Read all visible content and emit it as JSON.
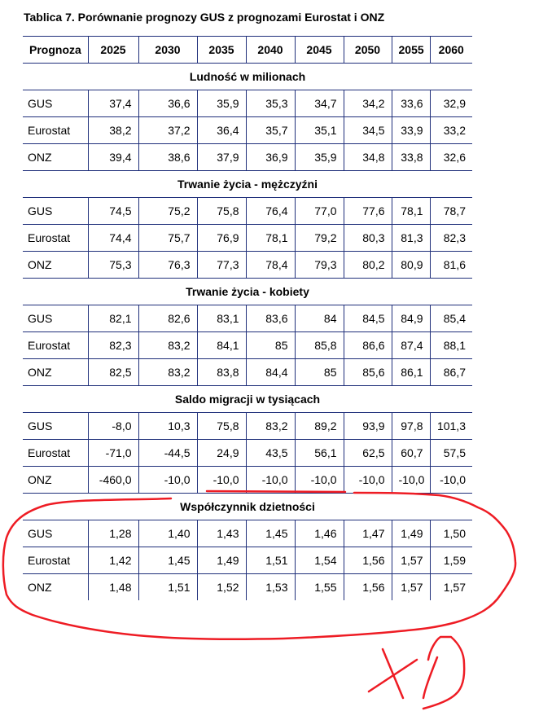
{
  "title": "Tablica 7. Porównanie prognozy GUS z prognozami Eurostat i ONZ",
  "table": {
    "header": [
      "Prognoza",
      "2025",
      "2030",
      "2035",
      "2040",
      "2045",
      "2050",
      "2055",
      "2060"
    ],
    "sections": [
      {
        "title": "Ludność w milionach",
        "rows": [
          [
            "GUS",
            "37,4",
            "36,6",
            "35,9",
            "35,3",
            "34,7",
            "34,2",
            "33,6",
            "32,9"
          ],
          [
            "Eurostat",
            "38,2",
            "37,2",
            "36,4",
            "35,7",
            "35,1",
            "34,5",
            "33,9",
            "33,2"
          ],
          [
            "ONZ",
            "39,4",
            "38,6",
            "37,9",
            "36,9",
            "35,9",
            "34,8",
            "33,8",
            "32,6"
          ]
        ]
      },
      {
        "title": "Trwanie życia - mężczyźni",
        "rows": [
          [
            "GUS",
            "74,5",
            "75,2",
            "75,8",
            "76,4",
            "77,0",
            "77,6",
            "78,1",
            "78,7"
          ],
          [
            "Eurostat",
            "74,4",
            "75,7",
            "76,9",
            "78,1",
            "79,2",
            "80,3",
            "81,3",
            "82,3"
          ],
          [
            "ONZ",
            "75,3",
            "76,3",
            "77,3",
            "78,4",
            "79,3",
            "80,2",
            "80,9",
            "81,6"
          ]
        ]
      },
      {
        "title": "Trwanie życia - kobiety",
        "rows": [
          [
            "GUS",
            "82,1",
            "82,6",
            "83,1",
            "83,6",
            "84",
            "84,5",
            "84,9",
            "85,4"
          ],
          [
            "Eurostat",
            "82,3",
            "83,2",
            "84,1",
            "85",
            "85,8",
            "86,6",
            "87,4",
            "88,1"
          ],
          [
            "ONZ",
            "82,5",
            "83,2",
            "83,8",
            "84,4",
            "85",
            "85,6",
            "86,1",
            "86,7"
          ]
        ]
      },
      {
        "title": "Saldo migracji w tysiącach",
        "rows": [
          [
            "GUS",
            "-8,0",
            "10,3",
            "75,8",
            "83,2",
            "89,2",
            "93,9",
            "97,8",
            "101,3"
          ],
          [
            "Eurostat",
            "-71,0",
            "-44,5",
            "24,9",
            "43,5",
            "56,1",
            "62,5",
            "60,7",
            "57,5"
          ],
          [
            "ONZ",
            "-460,0",
            "-10,0",
            "-10,0",
            "-10,0",
            "-10,0",
            "-10,0",
            "-10,0",
            "-10,0"
          ]
        ]
      },
      {
        "title": "Współczynnik dzietności",
        "rows": [
          [
            "GUS",
            "1,28",
            "1,40",
            "1,43",
            "1,45",
            "1,46",
            "1,47",
            "1,49",
            "1,50"
          ],
          [
            "Eurostat",
            "1,42",
            "1,45",
            "1,49",
            "1,51",
            "1,54",
            "1,56",
            "1,57",
            "1,59"
          ],
          [
            "ONZ",
            "1,48",
            "1,51",
            "1,52",
            "1,53",
            "1,55",
            "1,56",
            "1,57",
            "1,57"
          ]
        ]
      }
    ]
  },
  "annotation": {
    "text": "XD",
    "color": "#ee1c24"
  },
  "colors": {
    "rule": "#1f2f7a"
  }
}
